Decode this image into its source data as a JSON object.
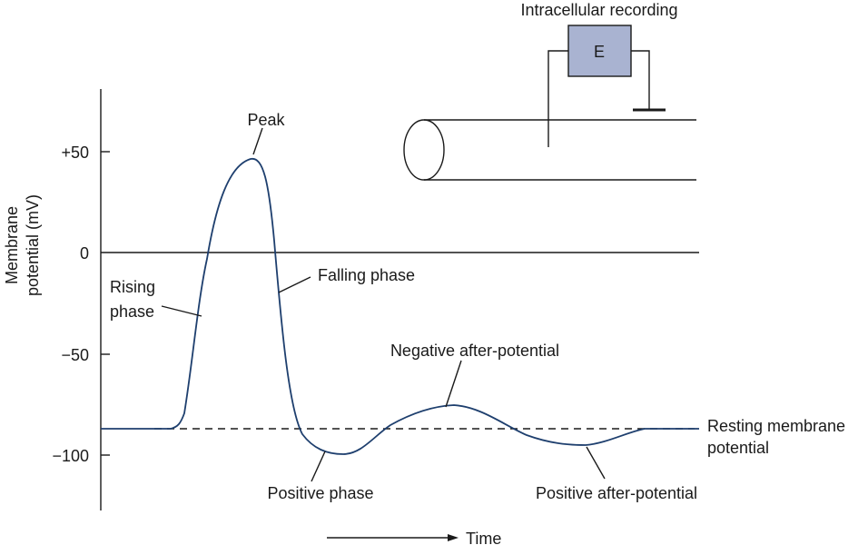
{
  "y_axis": {
    "label_line1": "Membrane",
    "label_line2": "potential (mV)",
    "ticks": [
      "+50",
      "0",
      "−50",
      "−100"
    ]
  },
  "x_axis": {
    "label": "Time"
  },
  "labels": {
    "peak": "Peak",
    "rising_line1": "Rising",
    "rising_line2": "phase",
    "falling": "Falling phase",
    "negative_after": "Negative after-potential",
    "positive_phase": "Positive phase",
    "positive_after": "Positive after-potential",
    "resting_line1": "Resting membrane",
    "resting_line2": "potential"
  },
  "setup": {
    "title": "Intracellular recording",
    "electrode": "E"
  },
  "colors": {
    "curve": "#1e3f6e",
    "electrode_fill": "#a9b3d1",
    "ink": "#1a1a1a"
  }
}
